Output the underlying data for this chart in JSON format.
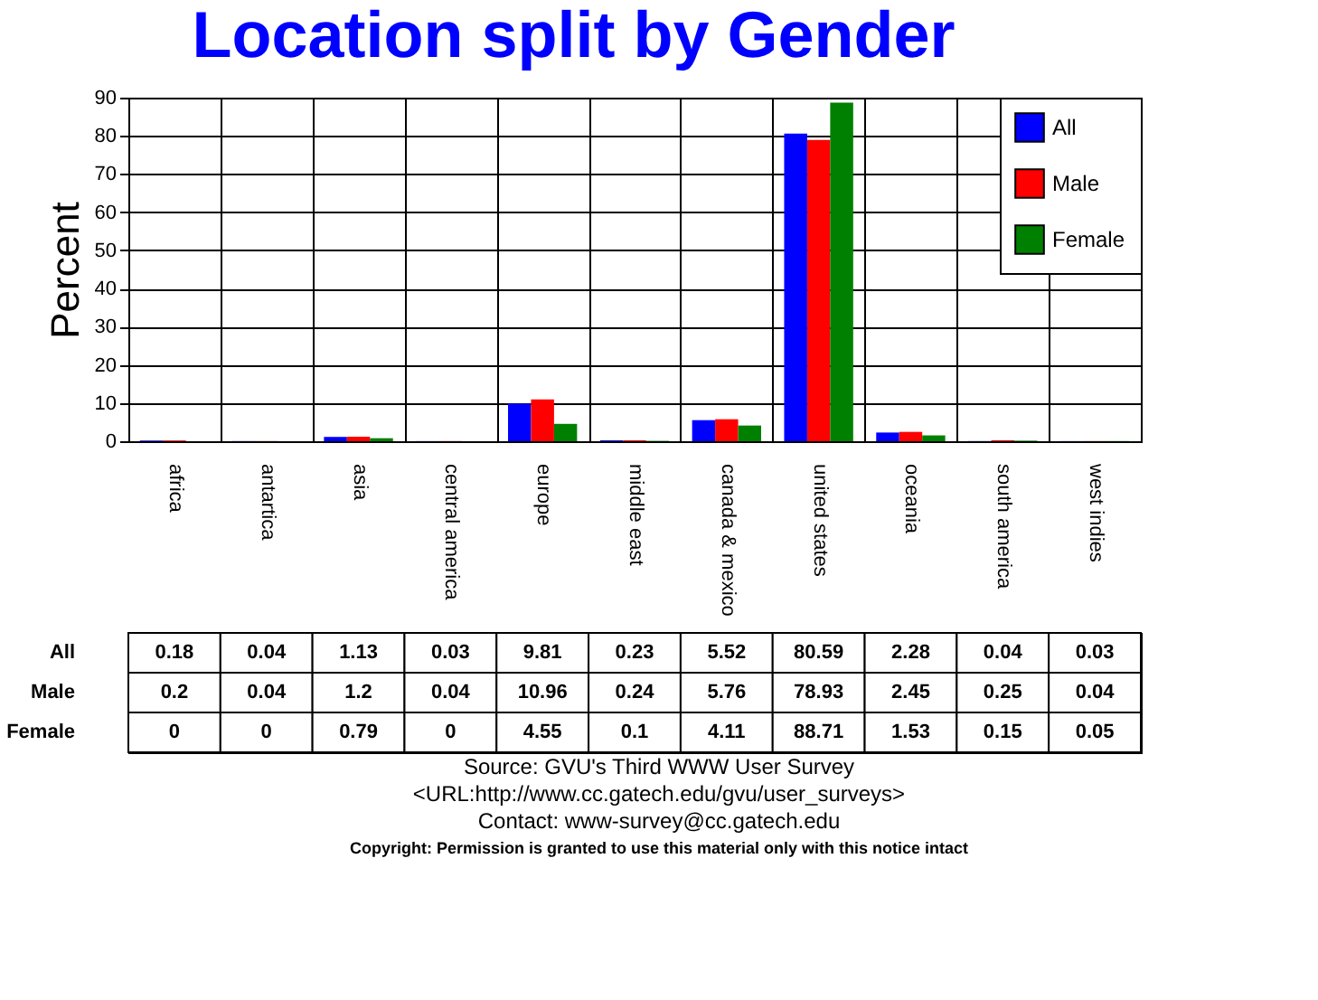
{
  "chart_data": {
    "type": "bar",
    "title": "Location split by Gender",
    "ylabel": "Percent",
    "categories": [
      "africa",
      "antartica",
      "asia",
      "central america",
      "europe",
      "middle east",
      "canada & mexico",
      "united states",
      "oceania",
      "south america",
      "west indies"
    ],
    "series": [
      {
        "name": "All",
        "color": "#0000ff",
        "values": [
          0.18,
          0.04,
          1.13,
          0.03,
          9.81,
          0.23,
          5.52,
          80.59,
          2.28,
          0.04,
          0.03
        ]
      },
      {
        "name": "Male",
        "color": "#ff0000",
        "values": [
          0.2,
          0.04,
          1.2,
          0.04,
          10.96,
          0.24,
          5.76,
          78.93,
          2.45,
          0.25,
          0.04
        ]
      },
      {
        "name": "Female",
        "color": "#008000",
        "values": [
          0,
          0,
          0.79,
          0,
          4.55,
          0.1,
          4.11,
          88.71,
          1.53,
          0.15,
          0.05
        ]
      }
    ],
    "ylim": [
      0,
      90
    ],
    "yticks": [
      0,
      10,
      20,
      30,
      40,
      50,
      60,
      70,
      80,
      90
    ],
    "grid": true,
    "legend": "top right",
    "data_labels": true,
    "annotations": [
      "Source: GVU's Third WWW User Survey",
      "<URL:http://www.cc.gatech.edu/gvu/user_surveys>",
      "Contact: www-survey@cc.gatech.edu",
      "Copyright: Permission is granted to use this material only with this notice intact"
    ]
  }
}
